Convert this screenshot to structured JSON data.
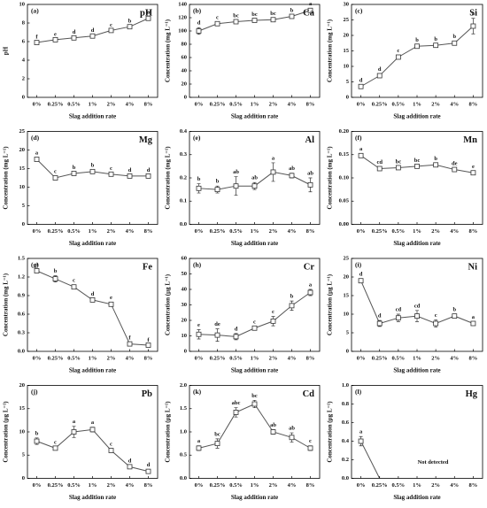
{
  "chart_data": [
    {
      "type": "line",
      "panel": "(a)",
      "title": "pH",
      "y_label": "pH",
      "x_label": "Slag addition rate",
      "categories": [
        "0%",
        "0.25%",
        "0.5%",
        "1%",
        "2%",
        "4%",
        "8%"
      ],
      "values": [
        5.9,
        6.2,
        6.4,
        6.6,
        7.2,
        7.6,
        8.5
      ],
      "errors": [
        0.1,
        0.1,
        0.1,
        0.1,
        0.1,
        0.1,
        0.15
      ],
      "letters": [
        "f",
        "e",
        "d",
        "d",
        "c",
        "b",
        "a"
      ],
      "ylim": [
        0,
        10
      ],
      "yticks": [
        0,
        2,
        4,
        6,
        8,
        10
      ],
      "color": "#555555"
    },
    {
      "type": "line",
      "panel": "(b)",
      "title": "Ca",
      "y_label": "Concentration (mg L⁻¹)",
      "x_label": "Slag addition rate",
      "categories": [
        "0%",
        "0.25%",
        "0.5%",
        "1%",
        "2%",
        "4%",
        "8%"
      ],
      "values": [
        100,
        111,
        114,
        116,
        117,
        122,
        131
      ],
      "errors": [
        5,
        2,
        2,
        2,
        2,
        2,
        3
      ],
      "letters": [
        "d",
        "c",
        "bc",
        "bc",
        "bc",
        "b",
        "a"
      ],
      "ylim": [
        0,
        140
      ],
      "yticks": [
        0,
        20,
        40,
        60,
        80,
        100,
        120,
        140
      ],
      "color": "#555555"
    },
    {
      "type": "line",
      "panel": "(c)",
      "title": "Si",
      "y_label": "Concentration (mg L⁻¹)",
      "x_label": "Slag addition rate",
      "categories": [
        "0%",
        "0.25%",
        "0.5%",
        "1%",
        "2%",
        "4%",
        "8%"
      ],
      "values": [
        3.5,
        7,
        13,
        16.5,
        16.8,
        17.5,
        23
      ],
      "errors": [
        0.5,
        0.5,
        0.5,
        0.5,
        0.5,
        0.6,
        2.5
      ],
      "letters": [
        "d",
        "d",
        "c",
        "b",
        "b",
        "b",
        "a"
      ],
      "ylim": [
        0,
        30
      ],
      "yticks": [
        0,
        5,
        10,
        15,
        20,
        25,
        30
      ],
      "color": "#555555"
    },
    {
      "type": "line",
      "panel": "(d)",
      "title": "Mg",
      "y_label": "Concentration (mg L⁻¹)",
      "x_label": "Slag addition rate",
      "categories": [
        "0%",
        "0.25%",
        "0.5%",
        "1%",
        "2%",
        "4%",
        "8%"
      ],
      "values": [
        17.5,
        12.5,
        13.7,
        14.2,
        13.5,
        13,
        13
      ],
      "errors": [
        0.5,
        0.5,
        0.4,
        0.4,
        0.3,
        0.3,
        0.3
      ],
      "letters": [
        "a",
        "c",
        "b",
        "b",
        "c",
        "d",
        "d"
      ],
      "ylim": [
        0,
        25
      ],
      "yticks": [
        0,
        5,
        10,
        15,
        20,
        25
      ],
      "color": "#555555"
    },
    {
      "type": "line",
      "panel": "(e)",
      "title": "Al",
      "y_label": "Concentration (mg L⁻¹)",
      "x_label": "Slag addition rate",
      "categories": [
        "0%",
        "0.25%",
        "0.5%",
        "1%",
        "2%",
        "4%",
        "8%"
      ],
      "values": [
        0.155,
        0.15,
        0.165,
        0.165,
        0.225,
        0.21,
        0.17
      ],
      "errors": [
        0.02,
        0.015,
        0.04,
        0.015,
        0.04,
        0.01,
        0.03
      ],
      "letters": [
        "b",
        "b",
        "ab",
        "ab",
        "a",
        "ab",
        "ab"
      ],
      "ylim": [
        0,
        0.4
      ],
      "yticks": [
        {
          "value": 0,
          "label": "0.0"
        },
        0.1,
        0.2,
        0.3,
        0.4
      ],
      "color": "#555555"
    },
    {
      "type": "line",
      "panel": "(f)",
      "title": "Mn",
      "y_label": "Concentration (mg L⁻¹)",
      "x_label": "Slag addition rate",
      "categories": [
        "0%",
        "0.25%",
        "0.5%",
        "1%",
        "2%",
        "4%",
        "8%"
      ],
      "values": [
        0.148,
        0.12,
        0.122,
        0.125,
        0.128,
        0.118,
        0.111
      ],
      "errors": [
        0.004,
        0.004,
        0.003,
        0.003,
        0.003,
        0.003,
        0.003
      ],
      "letters": [
        "a",
        "cd",
        "bc",
        "bc",
        "b",
        "de",
        "e"
      ],
      "ylim": [
        0,
        0.2
      ],
      "yticks": [
        {
          "value": 0,
          "label": "0.00"
        },
        0.05,
        {
          "value": 0.1,
          "label": "0.10"
        },
        0.15,
        {
          "value": 0.2,
          "label": "0.20"
        }
      ],
      "color": "#555555"
    },
    {
      "type": "line",
      "panel": "(g)",
      "title": "Fe",
      "y_label": "Concentration (mg L⁻¹)",
      "x_label": "Slag addition rate",
      "categories": [
        "0%",
        "0.25%",
        "0.5%",
        "1%",
        "2%",
        "4%",
        "8%"
      ],
      "values": [
        1.3,
        1.17,
        1.04,
        0.83,
        0.76,
        0.12,
        0.1
      ],
      "errors": [
        0.03,
        0.05,
        0.03,
        0.02,
        0.03,
        0.02,
        0.01
      ],
      "letters": [
        "a",
        "b",
        "c",
        "d",
        "e",
        "f",
        "f"
      ],
      "ylim": [
        0,
        1.5
      ],
      "yticks": [
        {
          "value": 0,
          "label": "0.0"
        },
        0.3,
        0.6,
        0.9,
        1.2,
        1.5
      ],
      "color": "#555555"
    },
    {
      "type": "line",
      "panel": "(h)",
      "title": "Cr",
      "y_label": "Concentration (μg L⁻¹)",
      "x_label": "Slag addition rate",
      "categories": [
        "0%",
        "0.25%",
        "0.5%",
        "1%",
        "2%",
        "4%",
        "8%"
      ],
      "values": [
        11,
        10.5,
        9.5,
        15,
        19.5,
        29.5,
        38
      ],
      "errors": [
        3,
        4,
        2,
        1,
        3,
        3,
        2
      ],
      "letters": [
        "e",
        "de",
        "d",
        "c",
        "c",
        "b",
        "a"
      ],
      "ylim": [
        0,
        60
      ],
      "yticks": [
        0,
        10,
        20,
        30,
        40,
        50,
        60
      ],
      "color": "#555555"
    },
    {
      "type": "line",
      "panel": "(i)",
      "title": "Ni",
      "y_label": "Concentration (μg L⁻¹)",
      "x_label": "Slag addition rate",
      "categories": [
        "0%",
        "0.25%",
        "0.5%",
        "1%",
        "2%",
        "4%",
        "8%"
      ],
      "values": [
        19,
        7.5,
        9,
        9.5,
        7.5,
        9.5,
        7.5
      ],
      "errors": [
        0.5,
        0.8,
        1,
        1.5,
        1,
        0.5,
        0.5
      ],
      "letters": [
        "d",
        "d",
        "cd",
        "cd",
        "c",
        "b",
        "a"
      ],
      "ylim": [
        0,
        25
      ],
      "yticks": [
        0,
        5,
        10,
        15,
        20,
        25
      ],
      "color": "#555555"
    },
    {
      "type": "line",
      "panel": "(j)",
      "title": "Pb",
      "y_label": "Concentration (μg L⁻¹)",
      "x_label": "Slag addition rate",
      "categories": [
        "0%",
        "0.25%",
        "0.5%",
        "1%",
        "2%",
        "4%",
        "8%"
      ],
      "values": [
        8,
        6.5,
        10,
        10.5,
        6,
        2.5,
        1.5
      ],
      "errors": [
        0.7,
        0.3,
        1.2,
        0.5,
        0.4,
        0.3,
        0.4
      ],
      "letters": [
        "b",
        "c",
        "a",
        "a",
        "c",
        "d",
        "d"
      ],
      "ylim": [
        0,
        20
      ],
      "yticks": [
        0,
        5,
        10,
        15,
        20
      ],
      "color": "#555555"
    },
    {
      "type": "line",
      "panel": "(k)",
      "title": "Cd",
      "y_label": "Concentration (μg L⁻¹)",
      "x_label": "Slag addition rate",
      "categories": [
        "0%",
        "0.25%",
        "0.5%",
        "1%",
        "2%",
        "4%",
        "8%"
      ],
      "values": [
        0.65,
        0.75,
        1.42,
        1.6,
        1.0,
        0.88,
        0.65
      ],
      "errors": [
        0.05,
        0.1,
        0.1,
        0.08,
        0.05,
        0.1,
        0.05
      ],
      "letters": [
        "a",
        "bc",
        "abc",
        "bc",
        "ab",
        "ab",
        "c"
      ],
      "ylim": [
        0,
        2
      ],
      "yticks": [
        {
          "value": 0,
          "label": "0.0"
        },
        0.5,
        {
          "value": 1,
          "label": "1.0"
        },
        1.5,
        {
          "value": 2,
          "label": "2.0"
        }
      ],
      "color": "#555555"
    },
    {
      "type": "line",
      "panel": "(l)",
      "title": "Hg",
      "y_label": "Concentration (μg L⁻¹)",
      "x_label": "Slag addition rate",
      "note": "Not detected",
      "categories": [
        "0%",
        "0.25%",
        "0.5%",
        "1%",
        "2%",
        "4%",
        "8%"
      ],
      "values": [
        0.4,
        0,
        null,
        null,
        null,
        null,
        null
      ],
      "errors": [
        0.05,
        null,
        null,
        null,
        null,
        null,
        null
      ],
      "letters": [
        "a",
        null,
        null,
        null,
        null,
        null,
        null
      ],
      "ylim": [
        0,
        1
      ],
      "yticks": [
        {
          "value": 0,
          "label": "0.0"
        },
        0.2,
        0.4,
        0.6,
        0.8,
        {
          "value": 1,
          "label": "1.0"
        }
      ],
      "color": "#555555"
    }
  ]
}
